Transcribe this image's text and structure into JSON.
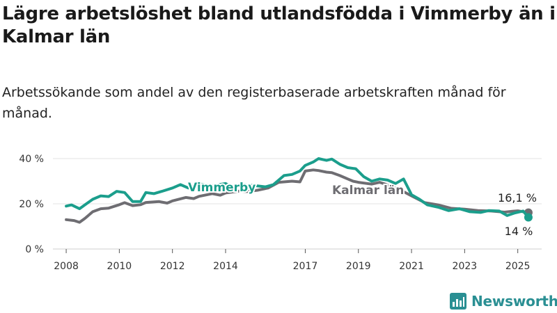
{
  "title": "Lägre arbetslöshet bland utlandsfödda i Vimmerby än i Kalmar län",
  "subtitle": "Arbetssökande som andel av den registerbaserade arbetskraften månad för månad.",
  "brand": {
    "name": "Newsworthy",
    "icon": "bar-chart-logo-icon",
    "color": "#2a8f93"
  },
  "chart_data": {
    "type": "line",
    "y_ticks": [
      0,
      20,
      40
    ],
    "y_tick_labels": [
      "0 %",
      "20 %",
      "40 %"
    ],
    "x_ticks": [
      2008,
      2010,
      2012,
      2014,
      2017,
      2019,
      2021,
      2023,
      2025
    ],
    "ylim": [
      0,
      40
    ],
    "xlim": [
      2007.5,
      2025.9
    ],
    "grid": true,
    "series": [
      {
        "name": "Kalmar län",
        "color": "#6e6d72",
        "end_label": "16,1 %",
        "points": [
          [
            2008.0,
            13.0
          ],
          [
            2008.3,
            12.6
          ],
          [
            2008.5,
            11.8
          ],
          [
            2008.7,
            13.5
          ],
          [
            2009.0,
            16.5
          ],
          [
            2009.3,
            17.8
          ],
          [
            2009.6,
            18.1
          ],
          [
            2010.0,
            19.6
          ],
          [
            2010.2,
            20.5
          ],
          [
            2010.5,
            19.2
          ],
          [
            2010.8,
            19.6
          ],
          [
            2011.0,
            20.6
          ],
          [
            2011.5,
            21.0
          ],
          [
            2011.8,
            20.3
          ],
          [
            2012.0,
            21.3
          ],
          [
            2012.5,
            22.8
          ],
          [
            2012.8,
            22.3
          ],
          [
            2013.0,
            23.3
          ],
          [
            2013.5,
            24.5
          ],
          [
            2013.8,
            23.8
          ],
          [
            2014.0,
            24.8
          ],
          [
            2014.5,
            25.6
          ],
          [
            2014.8,
            25.4
          ],
          [
            2015.2,
            26.0
          ],
          [
            2015.6,
            27.0
          ],
          [
            2016.0,
            29.5
          ],
          [
            2016.5,
            30.0
          ],
          [
            2016.8,
            29.7
          ],
          [
            2017.0,
            34.5
          ],
          [
            2017.3,
            35.0
          ],
          [
            2017.5,
            34.7
          ],
          [
            2017.8,
            34.0
          ],
          [
            2018.0,
            33.8
          ],
          [
            2018.3,
            32.5
          ],
          [
            2018.6,
            31.0
          ],
          [
            2018.8,
            30.0
          ],
          [
            2019.0,
            29.5
          ],
          [
            2019.5,
            28.7
          ],
          [
            2019.8,
            29.5
          ],
          [
            2020.2,
            28.0
          ],
          [
            2020.6,
            26.0
          ],
          [
            2021.0,
            23.5
          ],
          [
            2021.5,
            20.5
          ],
          [
            2022.0,
            19.5
          ],
          [
            2022.5,
            18.0
          ],
          [
            2023.0,
            17.6
          ],
          [
            2023.5,
            17.0
          ],
          [
            2024.0,
            16.8
          ],
          [
            2024.5,
            16.3
          ],
          [
            2024.8,
            16.7
          ],
          [
            2025.0,
            16.9
          ],
          [
            2025.4,
            16.1
          ]
        ]
      },
      {
        "name": "Vimmerby",
        "color": "#1b9e8c",
        "end_label": "14 %",
        "points": [
          [
            2008.0,
            19.0
          ],
          [
            2008.2,
            19.5
          ],
          [
            2008.5,
            17.8
          ],
          [
            2008.7,
            19.5
          ],
          [
            2009.0,
            22.0
          ],
          [
            2009.3,
            23.5
          ],
          [
            2009.6,
            23.2
          ],
          [
            2009.9,
            25.5
          ],
          [
            2010.2,
            25.0
          ],
          [
            2010.5,
            21.0
          ],
          [
            2010.8,
            21.0
          ],
          [
            2011.0,
            25.0
          ],
          [
            2011.3,
            24.5
          ],
          [
            2011.6,
            25.5
          ],
          [
            2012.0,
            27.0
          ],
          [
            2012.3,
            28.5
          ],
          [
            2012.6,
            27.0
          ],
          [
            2013.0,
            28.8
          ],
          [
            2013.5,
            28.0
          ],
          [
            2014.0,
            29.0
          ],
          [
            2014.3,
            27.0
          ],
          [
            2014.7,
            28.5
          ],
          [
            2015.0,
            28.2
          ],
          [
            2015.5,
            27.5
          ],
          [
            2015.8,
            28.5
          ],
          [
            2016.2,
            32.5
          ],
          [
            2016.5,
            33.0
          ],
          [
            2016.8,
            34.5
          ],
          [
            2017.0,
            37.0
          ],
          [
            2017.3,
            38.5
          ],
          [
            2017.5,
            40.0
          ],
          [
            2017.8,
            39.2
          ],
          [
            2018.0,
            39.8
          ],
          [
            2018.3,
            37.5
          ],
          [
            2018.6,
            36.0
          ],
          [
            2018.9,
            35.5
          ],
          [
            2019.2,
            32.0
          ],
          [
            2019.5,
            30.0
          ],
          [
            2019.8,
            31.0
          ],
          [
            2020.1,
            30.5
          ],
          [
            2020.4,
            29.0
          ],
          [
            2020.7,
            31.0
          ],
          [
            2021.0,
            24.0
          ],
          [
            2021.3,
            22.0
          ],
          [
            2021.6,
            19.5
          ],
          [
            2022.0,
            18.5
          ],
          [
            2022.4,
            17.0
          ],
          [
            2022.8,
            17.8
          ],
          [
            2023.2,
            16.5
          ],
          [
            2023.6,
            16.2
          ],
          [
            2023.9,
            17.0
          ],
          [
            2024.3,
            16.8
          ],
          [
            2024.6,
            14.8
          ],
          [
            2024.9,
            16.0
          ],
          [
            2025.2,
            16.8
          ],
          [
            2025.4,
            14.0
          ]
        ]
      }
    ]
  }
}
